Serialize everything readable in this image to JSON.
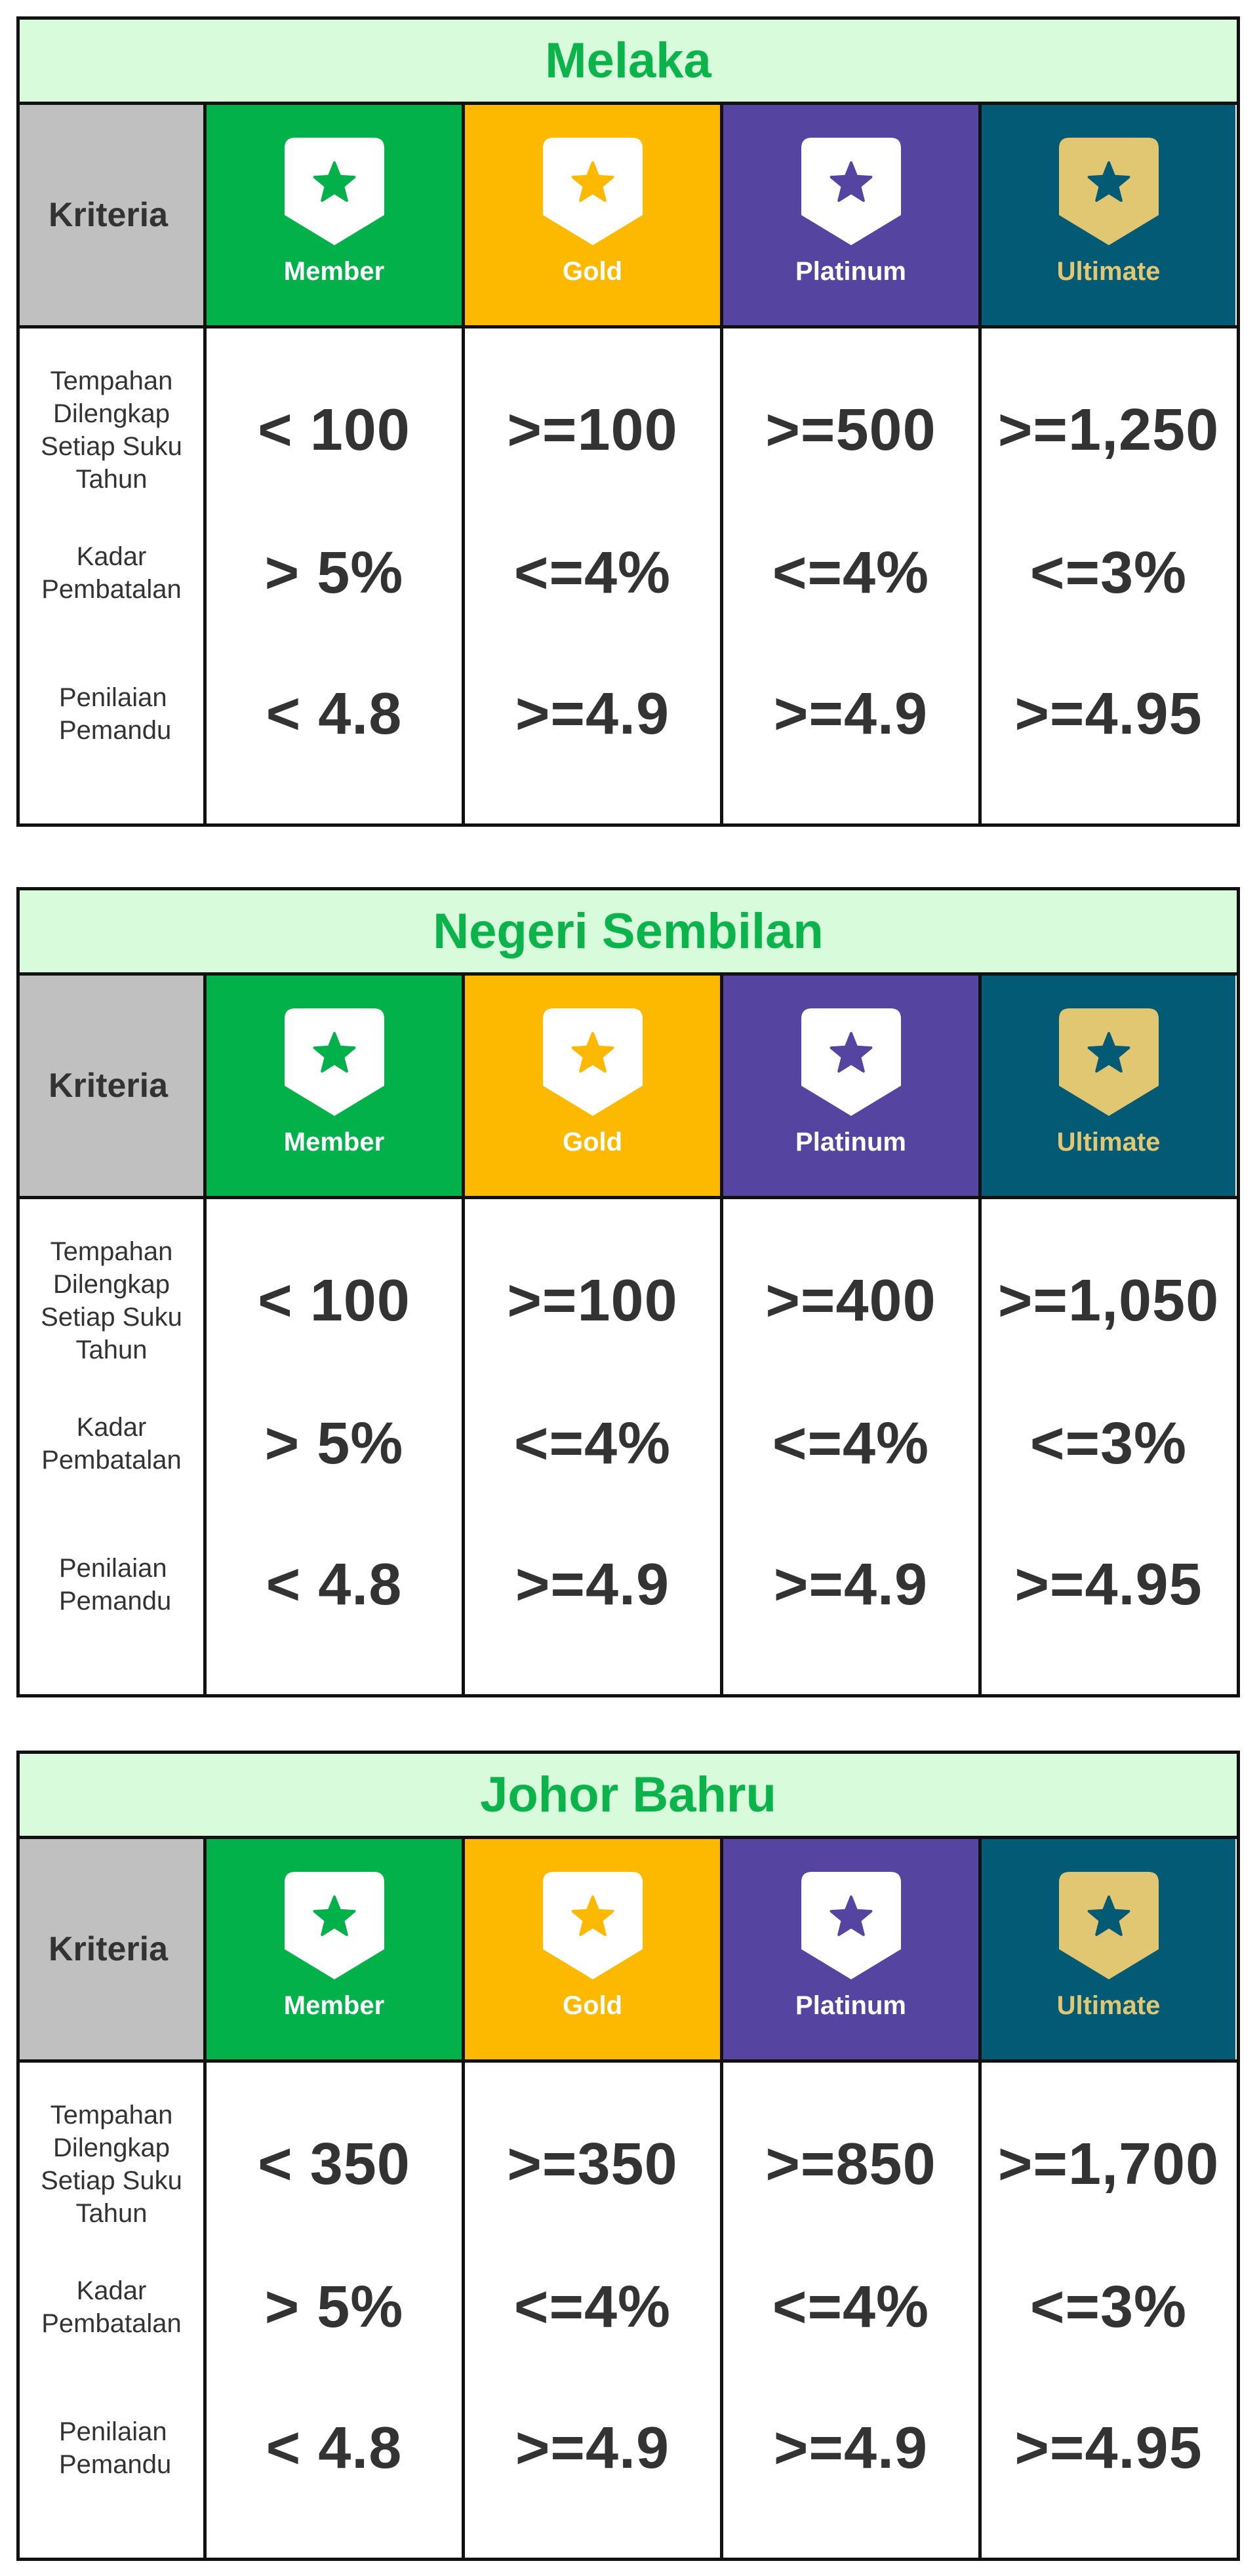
{
  "colors": {
    "title_bg": "#d8fbdc",
    "title_text": "#0bb34b",
    "criteria_bg": "#c0c0c0",
    "member": "#03b14b",
    "gold": "#fdb900",
    "platinum": "#5545a1",
    "ultimate": "#035a74",
    "ultimate_badge": "#e2c773",
    "border": "#111111"
  },
  "criteria_header": "Kriteria",
  "criteria": [
    "Tempahan Dilengkap Setiap Suku Tahun",
    "Kadar Pembatalan",
    "Penilaian Pemandu"
  ],
  "tiers": [
    {
      "name": "Member",
      "bg": "#03b14b",
      "badge_bg": "#ffffff",
      "star": "#03b14b",
      "label_color": "#ffffff",
      "icon": "star-badge-icon"
    },
    {
      "name": "Gold",
      "bg": "#fdb900",
      "badge_bg": "#ffffff",
      "star": "#fdb900",
      "label_color": "#ffffff",
      "icon": "star-badge-icon"
    },
    {
      "name": "Platinum",
      "bg": "#5545a1",
      "badge_bg": "#ffffff",
      "star": "#5545a1",
      "label_color": "#ffffff",
      "icon": "star-badge-icon"
    },
    {
      "name": "Ultimate",
      "bg": "#035a74",
      "badge_bg": "#e2c773",
      "star": "#035a74",
      "label_color": "#e2c773",
      "icon": "star-badge-icon"
    }
  ],
  "regions": [
    {
      "title": "Melaka",
      "rows": [
        [
          "< 100",
          ">=100",
          ">=500",
          ">=1,250"
        ],
        [
          "> 5%",
          "<=4%",
          "<=4%",
          "<=3%"
        ],
        [
          "< 4.8",
          ">=4.9",
          ">=4.9",
          ">=4.95"
        ]
      ]
    },
    {
      "title": "Negeri Sembilan",
      "rows": [
        [
          "< 100",
          ">=100",
          ">=400",
          ">=1,050"
        ],
        [
          "> 5%",
          "<=4%",
          "<=4%",
          "<=3%"
        ],
        [
          "< 4.8",
          ">=4.9",
          ">=4.9",
          ">=4.95"
        ]
      ]
    },
    {
      "title": "Johor Bahru",
      "rows": [
        [
          "< 350",
          ">=350",
          ">=850",
          ">=1,700"
        ],
        [
          "> 5%",
          "<=4%",
          "<=4%",
          "<=3%"
        ],
        [
          "< 4.8",
          ">=4.9",
          ">=4.9",
          ">=4.95"
        ]
      ]
    }
  ]
}
